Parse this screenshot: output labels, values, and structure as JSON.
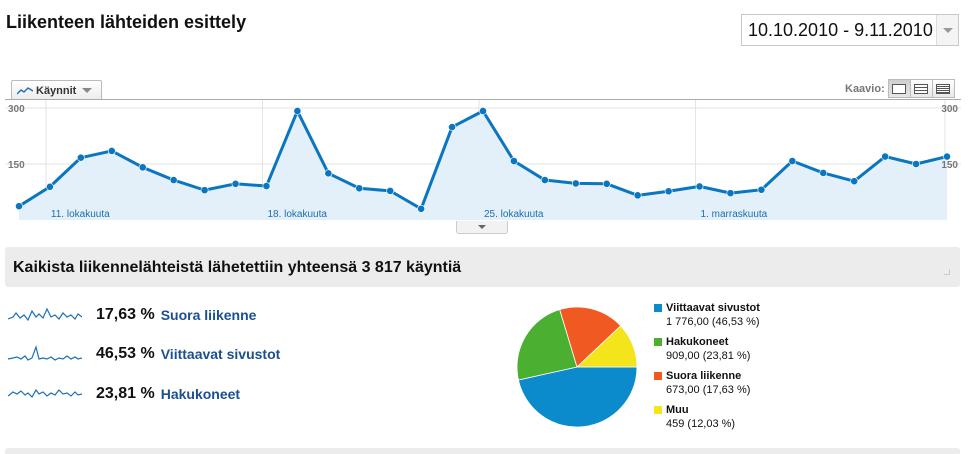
{
  "page": {
    "title": "Liikenteen lähteiden esittely",
    "date_range": "10.10.2010 - 9.11.2010"
  },
  "chart_controls": {
    "metric_label": "Käynnit",
    "kaavio_label": "Kaavio:",
    "view_buttons": [
      "line-chart-view-icon",
      "table-view-icon",
      "list-view-icon"
    ]
  },
  "colors": {
    "line": "#0b76c0",
    "area": "#e3f0fa",
    "link": "#1c4f91",
    "pie_referral": "#0b8bcc",
    "pie_search": "#4bb031",
    "pie_direct": "#f05a22",
    "pie_other": "#f4e41c"
  },
  "chart_data": {
    "type": "area",
    "title": "",
    "ylim": [
      0,
      300
    ],
    "yticks": [
      "300",
      "150"
    ],
    "y_right_ticks": [
      "300",
      "150"
    ],
    "x_labels": [
      "11. lokakuuta",
      "18. lokakuuta",
      "25. lokakuuta",
      "1. marraskuuta"
    ],
    "x_label_index": [
      1,
      8,
      15,
      22
    ],
    "grid": true,
    "series": [
      {
        "values": [
          37,
          89,
          167,
          185,
          141,
          107,
          80,
          97,
          91,
          292,
          125,
          85,
          78,
          30,
          249,
          292,
          158,
          107,
          98,
          97,
          66,
          77,
          90,
          72,
          81,
          158,
          126,
          104,
          170,
          150,
          170
        ]
      }
    ]
  },
  "summary": {
    "headline": "Kaikista liikennelähteistä lähetettiin yhteensä 3 817 käyntiä"
  },
  "sources": [
    {
      "pct": "17,63 %",
      "name": "Suora liikenne"
    },
    {
      "pct": "46,53 %",
      "name": "Viittaavat sivustot"
    },
    {
      "pct": "23,81 %",
      "name": "Hakukoneet"
    }
  ],
  "pie": {
    "type": "pie",
    "slices": [
      {
        "name": "Viittaavat sivustot",
        "value": 1776,
        "label": "1 776,00 (46,53 %)",
        "color": "#0b8bcc"
      },
      {
        "name": "Hakukoneet",
        "value": 909,
        "label": "909,00 (23,81 %)",
        "color": "#4bb031"
      },
      {
        "name": "Suora liikenne",
        "value": 673,
        "label": "673,00 (17,63 %)",
        "color": "#f05a22"
      },
      {
        "name": "Muu",
        "value": 459,
        "label": "459 (12,03 %)",
        "color": "#f4e41c"
      }
    ]
  }
}
